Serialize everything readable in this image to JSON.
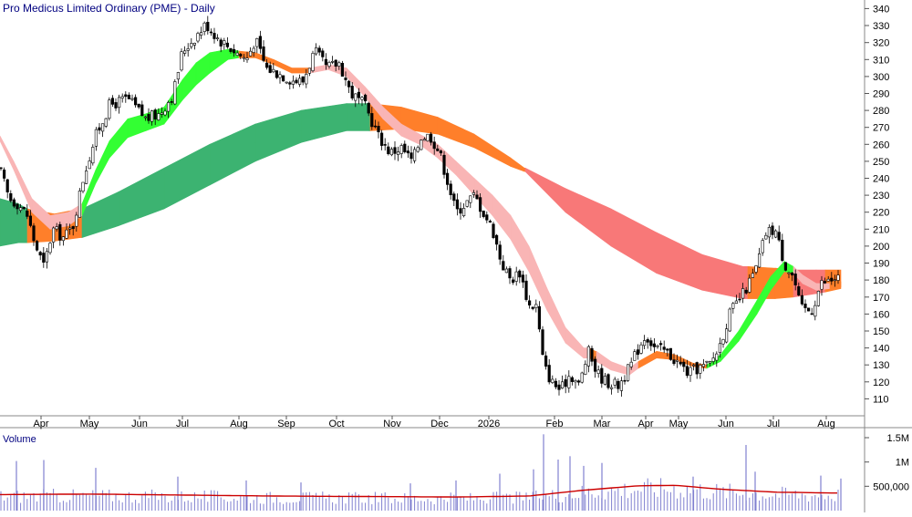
{
  "chart_data": {
    "type": "candlestick",
    "title": "Pro Medicus Limited Ordinary (PME) - Daily",
    "x_labels": [
      "Apr",
      "May",
      "Jun",
      "Jul",
      "Aug",
      "Sep",
      "Oct",
      "Nov",
      "Dec",
      "2026",
      "Feb",
      "Mar",
      "Apr",
      "May",
      "Jun",
      "Jul",
      "Aug"
    ],
    "y_ticks": [
      110,
      120,
      130,
      140,
      150,
      160,
      170,
      180,
      190,
      200,
      210,
      220,
      230,
      240,
      250,
      260,
      270,
      280,
      290,
      300,
      310,
      320,
      330,
      340
    ],
    "ylim": [
      100,
      344
    ],
    "price_anchors": [
      {
        "x": 0,
        "y": 245
      },
      {
        "x": 10,
        "y": 228
      },
      {
        "x": 20,
        "y": 225
      },
      {
        "x": 30,
        "y": 218
      },
      {
        "x": 38,
        "y": 202
      },
      {
        "x": 48,
        "y": 188
      },
      {
        "x": 58,
        "y": 210
      },
      {
        "x": 70,
        "y": 205
      },
      {
        "x": 80,
        "y": 212
      },
      {
        "x": 92,
        "y": 242
      },
      {
        "x": 105,
        "y": 265
      },
      {
        "x": 120,
        "y": 283
      },
      {
        "x": 140,
        "y": 287
      },
      {
        "x": 160,
        "y": 275
      },
      {
        "x": 175,
        "y": 278
      },
      {
        "x": 190,
        "y": 290
      },
      {
        "x": 200,
        "y": 315
      },
      {
        "x": 212,
        "y": 322
      },
      {
        "x": 226,
        "y": 331
      },
      {
        "x": 240,
        "y": 322
      },
      {
        "x": 255,
        "y": 316
      },
      {
        "x": 270,
        "y": 310
      },
      {
        "x": 280,
        "y": 322
      },
      {
        "x": 292,
        "y": 305
      },
      {
        "x": 305,
        "y": 302
      },
      {
        "x": 320,
        "y": 298
      },
      {
        "x": 332,
        "y": 297
      },
      {
        "x": 345,
        "y": 315
      },
      {
        "x": 358,
        "y": 305
      },
      {
        "x": 372,
        "y": 308
      },
      {
        "x": 385,
        "y": 290
      },
      {
        "x": 400,
        "y": 283
      },
      {
        "x": 415,
        "y": 265
      },
      {
        "x": 428,
        "y": 255
      },
      {
        "x": 440,
        "y": 258
      },
      {
        "x": 452,
        "y": 250
      },
      {
        "x": 462,
        "y": 265
      },
      {
        "x": 472,
        "y": 265
      },
      {
        "x": 482,
        "y": 255
      },
      {
        "x": 490,
        "y": 240
      },
      {
        "x": 500,
        "y": 220
      },
      {
        "x": 510,
        "y": 225
      },
      {
        "x": 520,
        "y": 230
      },
      {
        "x": 530,
        "y": 220
      },
      {
        "x": 540,
        "y": 210
      },
      {
        "x": 550,
        "y": 190
      },
      {
        "x": 560,
        "y": 180
      },
      {
        "x": 570,
        "y": 185
      },
      {
        "x": 580,
        "y": 165
      },
      {
        "x": 588,
        "y": 165
      },
      {
        "x": 596,
        "y": 130
      },
      {
        "x": 605,
        "y": 120
      },
      {
        "x": 615,
        "y": 115
      },
      {
        "x": 625,
        "y": 125
      },
      {
        "x": 635,
        "y": 118
      },
      {
        "x": 645,
        "y": 138
      },
      {
        "x": 655,
        "y": 125
      },
      {
        "x": 665,
        "y": 120
      },
      {
        "x": 678,
        "y": 118
      },
      {
        "x": 690,
        "y": 128
      },
      {
        "x": 700,
        "y": 140
      },
      {
        "x": 708,
        "y": 148
      },
      {
        "x": 718,
        "y": 140
      },
      {
        "x": 730,
        "y": 138
      },
      {
        "x": 742,
        "y": 132
      },
      {
        "x": 755,
        "y": 125
      },
      {
        "x": 765,
        "y": 128
      },
      {
        "x": 778,
        "y": 130
      },
      {
        "x": 788,
        "y": 140
      },
      {
        "x": 800,
        "y": 160
      },
      {
        "x": 815,
        "y": 172
      },
      {
        "x": 828,
        "y": 185
      },
      {
        "x": 840,
        "y": 208
      },
      {
        "x": 850,
        "y": 210
      },
      {
        "x": 860,
        "y": 190
      },
      {
        "x": 870,
        "y": 182
      },
      {
        "x": 878,
        "y": 163
      },
      {
        "x": 890,
        "y": 162
      },
      {
        "x": 900,
        "y": 178
      },
      {
        "x": 912,
        "y": 180
      },
      {
        "x": 922,
        "y": 182
      }
    ],
    "ribbon_short": [
      {
        "x": 0,
        "u": 265,
        "l": 262,
        "c": "#f9b5b5"
      },
      {
        "x": 15,
        "u": 250,
        "l": 245,
        "c": "#f9b5b5"
      },
      {
        "x": 35,
        "u": 228,
        "l": 220,
        "c": "#f9b5b5"
      },
      {
        "x": 55,
        "u": 218,
        "l": 210,
        "c": "#f9b5b5"
      },
      {
        "x": 75,
        "u": 220,
        "l": 212,
        "c": "#f9b5b5"
      },
      {
        "x": 90,
        "u": 225,
        "l": 218,
        "c": "#33ff33"
      },
      {
        "x": 105,
        "u": 245,
        "l": 237,
        "c": "#33ff33"
      },
      {
        "x": 120,
        "u": 262,
        "l": 252,
        "c": "#33ff33"
      },
      {
        "x": 140,
        "u": 275,
        "l": 264,
        "c": "#33ff33"
      },
      {
        "x": 160,
        "u": 278,
        "l": 268,
        "c": "#33ff33"
      },
      {
        "x": 180,
        "u": 282,
        "l": 272,
        "c": "#33ff33"
      },
      {
        "x": 200,
        "u": 298,
        "l": 286,
        "c": "#33ff33"
      },
      {
        "x": 215,
        "u": 308,
        "l": 295,
        "c": "#33ff33"
      },
      {
        "x": 230,
        "u": 314,
        "l": 302,
        "c": "#33ff33"
      },
      {
        "x": 250,
        "u": 316,
        "l": 310,
        "c": "#33ff33"
      },
      {
        "x": 262,
        "u": 315,
        "l": 311,
        "c": "#ff7f2a"
      },
      {
        "x": 280,
        "u": 314,
        "l": 311,
        "c": "#ff7f2a"
      },
      {
        "x": 300,
        "u": 310,
        "l": 307,
        "c": "#ff7f2a"
      },
      {
        "x": 320,
        "u": 305,
        "l": 302,
        "c": "#ff7f2a"
      },
      {
        "x": 340,
        "u": 305,
        "l": 302,
        "c": "#f9b5b5"
      },
      {
        "x": 360,
        "u": 307,
        "l": 304,
        "c": "#f9b5b5"
      },
      {
        "x": 380,
        "u": 305,
        "l": 300,
        "c": "#f9b5b5"
      },
      {
        "x": 400,
        "u": 294,
        "l": 288,
        "c": "#f9b5b5"
      },
      {
        "x": 420,
        "u": 282,
        "l": 275,
        "c": "#f9b5b5"
      },
      {
        "x": 440,
        "u": 272,
        "l": 265,
        "c": "#f9b5b5"
      },
      {
        "x": 460,
        "u": 266,
        "l": 260,
        "c": "#f9b5b5"
      },
      {
        "x": 480,
        "u": 260,
        "l": 252,
        "c": "#f9b5b5"
      },
      {
        "x": 500,
        "u": 250,
        "l": 242,
        "c": "#f9b5b5"
      },
      {
        "x": 520,
        "u": 240,
        "l": 230,
        "c": "#f9b5b5"
      },
      {
        "x": 540,
        "u": 230,
        "l": 218,
        "c": "#f9b5b5"
      },
      {
        "x": 560,
        "u": 218,
        "l": 204,
        "c": "#f9b5b5"
      },
      {
        "x": 580,
        "u": 200,
        "l": 185,
        "c": "#f9b5b5"
      },
      {
        "x": 600,
        "u": 175,
        "l": 162,
        "c": "#f9b5b5"
      },
      {
        "x": 620,
        "u": 152,
        "l": 143,
        "c": "#f9b5b5"
      },
      {
        "x": 640,
        "u": 140,
        "l": 134,
        "c": "#f9b5b5"
      },
      {
        "x": 646,
        "u": 140,
        "l": 134,
        "c": "#ff7f2a"
      },
      {
        "x": 653,
        "u": 138,
        "l": 132,
        "c": "#ff7f2a"
      },
      {
        "x": 654,
        "u": 138,
        "l": 132,
        "c": "#f9b5b5"
      },
      {
        "x": 670,
        "u": 132,
        "l": 127,
        "c": "#f9b5b5"
      },
      {
        "x": 690,
        "u": 128,
        "l": 124,
        "c": "#f9b5b5"
      },
      {
        "x": 700,
        "u": 132,
        "l": 128,
        "c": "#ff7f2a"
      },
      {
        "x": 720,
        "u": 138,
        "l": 134,
        "c": "#ff7f2a"
      },
      {
        "x": 740,
        "u": 136,
        "l": 133,
        "c": "#ff7f2a"
      },
      {
        "x": 760,
        "u": 131,
        "l": 129,
        "c": "#ff7f2a"
      },
      {
        "x": 775,
        "u": 130,
        "l": 128,
        "c": "#33ff33"
      },
      {
        "x": 790,
        "u": 136,
        "l": 132,
        "c": "#33ff33"
      },
      {
        "x": 810,
        "u": 150,
        "l": 144,
        "c": "#33ff33"
      },
      {
        "x": 830,
        "u": 168,
        "l": 160,
        "c": "#33ff33"
      },
      {
        "x": 845,
        "u": 182,
        "l": 174,
        "c": "#33ff33"
      },
      {
        "x": 860,
        "u": 191,
        "l": 185,
        "c": "#33ff33"
      },
      {
        "x": 870,
        "u": 188,
        "l": 184,
        "c": "#f9b5b5"
      },
      {
        "x": 880,
        "u": 183,
        "l": 178,
        "c": "#f9b5b5"
      },
      {
        "x": 895,
        "u": 178,
        "l": 174,
        "c": "#f9b5b5"
      },
      {
        "x": 910,
        "u": 178,
        "l": 175,
        "c": "#ff7f2a"
      },
      {
        "x": 922,
        "u": 179,
        "l": 176,
        "c": "#ff7f2a"
      }
    ],
    "ribbon_long": [
      {
        "x": 0,
        "u": 228,
        "l": 200,
        "c": "#3cb371"
      },
      {
        "x": 20,
        "u": 225,
        "l": 202,
        "c": "#3cb371"
      },
      {
        "x": 30,
        "u": 222,
        "l": 202,
        "c": "#ff7f2a"
      },
      {
        "x": 60,
        "u": 219,
        "l": 203,
        "c": "#ff7f2a"
      },
      {
        "x": 88,
        "u": 222,
        "l": 205,
        "c": "#ff7f2a"
      },
      {
        "x": 90,
        "u": 222,
        "l": 205,
        "c": "#3cb371"
      },
      {
        "x": 130,
        "u": 232,
        "l": 212,
        "c": "#3cb371"
      },
      {
        "x": 180,
        "u": 246,
        "l": 222,
        "c": "#3cb371"
      },
      {
        "x": 230,
        "u": 260,
        "l": 236,
        "c": "#3cb371"
      },
      {
        "x": 280,
        "u": 272,
        "l": 250,
        "c": "#3cb371"
      },
      {
        "x": 330,
        "u": 280,
        "l": 261,
        "c": "#3cb371"
      },
      {
        "x": 380,
        "u": 284,
        "l": 268,
        "c": "#3cb371"
      },
      {
        "x": 405,
        "u": 284,
        "l": 268,
        "c": "#3cb371"
      },
      {
        "x": 406,
        "u": 284,
        "l": 268,
        "c": "#ff7f2a"
      },
      {
        "x": 440,
        "u": 282,
        "l": 269,
        "c": "#ff7f2a"
      },
      {
        "x": 480,
        "u": 276,
        "l": 266,
        "c": "#ff7f2a"
      },
      {
        "x": 520,
        "u": 266,
        "l": 258,
        "c": "#ff7f2a"
      },
      {
        "x": 560,
        "u": 252,
        "l": 247,
        "c": "#ff7f2a"
      },
      {
        "x": 575,
        "u": 246,
        "l": 244,
        "c": "#ff7f2a"
      },
      {
        "x": 576,
        "u": 246,
        "l": 244,
        "c": "#f87878"
      },
      {
        "x": 620,
        "u": 234,
        "l": 220,
        "c": "#f87878"
      },
      {
        "x": 670,
        "u": 222,
        "l": 200,
        "c": "#f87878"
      },
      {
        "x": 720,
        "u": 208,
        "l": 184,
        "c": "#f87878"
      },
      {
        "x": 770,
        "u": 195,
        "l": 174,
        "c": "#f87878"
      },
      {
        "x": 815,
        "u": 188,
        "l": 169,
        "c": "#f87878"
      },
      {
        "x": 820,
        "u": 188,
        "l": 169,
        "c": "#ff7f2a"
      },
      {
        "x": 850,
        "u": 187,
        "l": 169,
        "c": "#ff7f2a"
      },
      {
        "x": 870,
        "u": 186,
        "l": 170,
        "c": "#f87878"
      },
      {
        "x": 895,
        "u": 186,
        "l": 172,
        "c": "#f87878"
      },
      {
        "x": 905,
        "u": 186,
        "l": 173,
        "c": "#ff7f2a"
      },
      {
        "x": 922,
        "u": 186,
        "l": 175,
        "c": "#ff7f2a"
      }
    ],
    "volume_label": "Volume",
    "volume_ticks": [
      "1.5M",
      "1M",
      "500,000"
    ],
    "volume_tick_values": [
      1500000,
      1000000,
      500000
    ],
    "volume_max": 1650000,
    "volume_spikes": [
      {
        "x": 18,
        "v": 1020000
      },
      {
        "x": 48,
        "v": 1040000
      },
      {
        "x": 105,
        "v": 880000
      },
      {
        "x": 195,
        "v": 700000
      },
      {
        "x": 270,
        "v": 620000
      },
      {
        "x": 330,
        "v": 580000
      },
      {
        "x": 450,
        "v": 560000
      },
      {
        "x": 500,
        "v": 620000
      },
      {
        "x": 548,
        "v": 760000
      },
      {
        "x": 585,
        "v": 850000
      },
      {
        "x": 596,
        "v": 1570000
      },
      {
        "x": 612,
        "v": 1050000
      },
      {
        "x": 625,
        "v": 1120000
      },
      {
        "x": 640,
        "v": 920000
      },
      {
        "x": 660,
        "v": 980000
      },
      {
        "x": 760,
        "v": 700000
      },
      {
        "x": 818,
        "v": 1350000
      },
      {
        "x": 828,
        "v": 800000
      },
      {
        "x": 900,
        "v": 720000
      },
      {
        "x": 922,
        "v": 660000
      }
    ],
    "volume_avg": [
      {
        "x": 0,
        "v": 330000
      },
      {
        "x": 100,
        "v": 340000
      },
      {
        "x": 200,
        "v": 320000
      },
      {
        "x": 300,
        "v": 300000
      },
      {
        "x": 400,
        "v": 290000
      },
      {
        "x": 500,
        "v": 280000
      },
      {
        "x": 580,
        "v": 300000
      },
      {
        "x": 640,
        "v": 420000
      },
      {
        "x": 700,
        "v": 510000
      },
      {
        "x": 740,
        "v": 520000
      },
      {
        "x": 790,
        "v": 440000
      },
      {
        "x": 850,
        "v": 380000
      },
      {
        "x": 922,
        "v": 360000
      }
    ],
    "colors": {
      "up_candle": "#ffffff",
      "candle_outline": "#000000",
      "ribbon_dark_green": "#3cb371",
      "ribbon_lime": "#33ff33",
      "ribbon_orange": "#ff7f2a",
      "ribbon_salmon": "#f87878",
      "ribbon_pink": "#f9b5b5",
      "volume_bars": "#8080d0",
      "volume_avg": "#cc0000",
      "title_text": "#000080"
    },
    "grid": false
  }
}
